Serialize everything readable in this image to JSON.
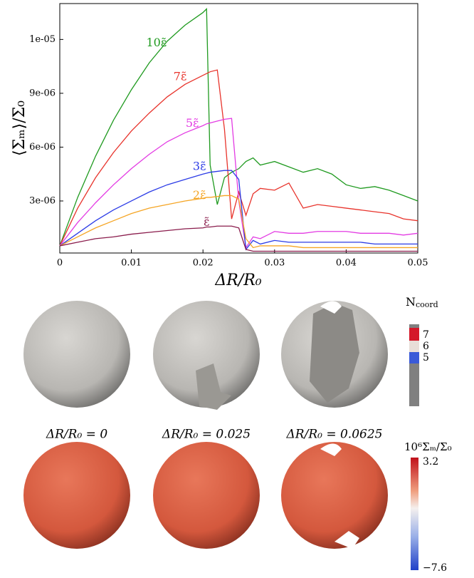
{
  "chart_data": {
    "type": "line",
    "xlabel": "ΔR/R₀",
    "ylabel": "⟨Σₘ⟩/Σ₀",
    "x": [
      0,
      0.0025,
      0.005,
      0.0075,
      0.01,
      0.0125,
      0.015,
      0.0175,
      0.02,
      0.0205,
      0.021,
      0.022,
      0.023,
      0.024,
      0.025,
      0.026,
      0.027,
      0.028,
      0.03,
      0.032,
      0.034,
      0.036,
      0.038,
      0.04,
      0.042,
      0.044,
      0.046,
      0.048,
      0.05
    ],
    "xlim": [
      0,
      0.05
    ],
    "xticks": [
      0,
      0.01,
      0.02,
      0.03,
      0.04,
      0.05
    ],
    "ylim": [
      1e-07,
      1.4e-05
    ],
    "yticks": [
      {
        "value": 3e-06,
        "label": "3e-06"
      },
      {
        "value": 6e-06,
        "label": "6e-06"
      },
      {
        "value": 9e-06,
        "label": "9e-06"
      },
      {
        "value": 1.2e-05,
        "label": "1e-05"
      }
    ],
    "series": [
      {
        "name": "10ε̃",
        "color": "#1f9a1f",
        "values": [
          5e-07,
          3.2e-06,
          5.5e-06,
          7.5e-06,
          9.2e-06,
          1.07e-05,
          1.19e-05,
          1.28e-05,
          1.35e-05,
          1.37e-05,
          5e-06,
          2.8e-06,
          4.3e-06,
          4.6e-06,
          4.8e-06,
          5.2e-06,
          5.4e-06,
          5e-06,
          5.2e-06,
          4.9e-06,
          4.6e-06,
          4.8e-06,
          4.5e-06,
          3.9e-06,
          3.7e-06,
          3.8e-06,
          3.6e-06,
          3.3e-06,
          3e-06
        ]
      },
      {
        "name": "7ε̃",
        "color": "#e8332b",
        "values": [
          5e-07,
          2.6e-06,
          4.3e-06,
          5.7e-06,
          6.9e-06,
          7.9e-06,
          8.8e-06,
          9.5e-06,
          1e-05,
          1.01e-05,
          1.02e-05,
          1.03e-05,
          7e-06,
          2e-06,
          3.5e-06,
          2.2e-06,
          3.4e-06,
          3.7e-06,
          3.6e-06,
          4e-06,
          2.6e-06,
          2.8e-06,
          2.7e-06,
          2.6e-06,
          2.5e-06,
          2.4e-06,
          2.3e-06,
          2e-06,
          1.9e-06
        ]
      },
      {
        "name": "5ε̃",
        "color": "#e33be3",
        "values": [
          5e-07,
          1.8e-06,
          2.9e-06,
          3.9e-06,
          4.8e-06,
          5.6e-06,
          6.3e-06,
          6.8e-06,
          7.2e-06,
          7.3e-06,
          7.35e-06,
          7.45e-06,
          7.55e-06,
          7.6e-06,
          3e-06,
          4e-07,
          1e-06,
          9e-07,
          1.3e-06,
          1.2e-06,
          1.2e-06,
          1.3e-06,
          1.3e-06,
          1.3e-06,
          1.2e-06,
          1.2e-06,
          1.2e-06,
          1.1e-06,
          1.2e-06
        ]
      },
      {
        "name": "3ε̃",
        "color": "#2b3be6",
        "values": [
          5e-07,
          1.2e-06,
          1.9e-06,
          2.5e-06,
          3e-06,
          3.5e-06,
          3.9e-06,
          4.2e-06,
          4.5e-06,
          4.55e-06,
          4.6e-06,
          4.65e-06,
          4.7e-06,
          4.7e-06,
          4.2e-06,
          3e-07,
          8e-07,
          6e-07,
          8e-07,
          7e-07,
          7e-07,
          7e-07,
          7e-07,
          7e-07,
          7e-07,
          6e-07,
          6e-07,
          6e-07,
          6e-07
        ]
      },
      {
        "name": "2ε̃",
        "color": "#f5a524",
        "values": [
          5e-07,
          1e-06,
          1.5e-06,
          1.9e-06,
          2.3e-06,
          2.6e-06,
          2.8e-06,
          3e-06,
          3.15e-06,
          3.2e-06,
          3.2e-06,
          3.25e-06,
          3.3e-06,
          3.3e-06,
          3.1e-06,
          9e-07,
          4e-07,
          5e-07,
          5e-07,
          5e-07,
          4e-07,
          4e-07,
          4e-07,
          4e-07,
          4e-07,
          4e-07,
          4e-07,
          4e-07,
          4e-07
        ]
      },
      {
        "name": "ε̃",
        "color": "#8a1c4c",
        "values": [
          5e-07,
          7e-07,
          9e-07,
          1e-06,
          1.15e-06,
          1.25e-06,
          1.35e-06,
          1.45e-06,
          1.5e-06,
          1.55e-06,
          1.55e-06,
          1.6e-06,
          1.6e-06,
          1.6e-06,
          1.5e-06,
          3e-07,
          2e-07,
          2e-07,
          2e-07,
          2e-07,
          2e-07,
          2e-07,
          2e-07,
          2e-07,
          2e-07,
          2e-07,
          2e-07,
          2e-07,
          2e-07
        ]
      }
    ]
  },
  "panels": {
    "captions": [
      "ΔR/R₀ = 0",
      "ΔR/R₀ = 0.025",
      "ΔR/R₀ = 0.0625"
    ],
    "coord_bar": {
      "symbol": "N",
      "subscript": "coord",
      "ticks": [
        7,
        6,
        5
      ]
    },
    "stress_bar": {
      "title": "10⁶Σₘ/Σ₀",
      "ticks": [
        {
          "value": 3.2,
          "label": "3.2"
        },
        {
          "value": -7.6,
          "label": "−7.6"
        }
      ]
    }
  }
}
